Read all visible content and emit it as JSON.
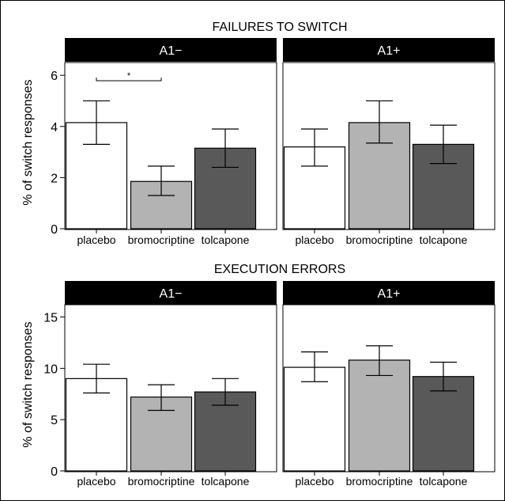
{
  "figure": {
    "ylabel": "% of switch responses",
    "significance_label": "*"
  },
  "colors": {
    "placebo": "#ffffff",
    "bromocriptine": "#b3b3b3",
    "tolcapone": "#595959",
    "strip": "#000000",
    "strip_text": "#ffffff"
  },
  "chart_data": [
    {
      "type": "bar",
      "title": "FAILURES TO SWITCH",
      "ylabel": "% of switch responses",
      "ylim": [
        0,
        6.5
      ],
      "yticks": [
        0,
        2,
        4,
        6
      ],
      "categories": [
        "placebo",
        "bromocriptine",
        "tolcapone"
      ],
      "panels": [
        {
          "label": "A1−",
          "values": [
            4.15,
            1.85,
            3.15
          ],
          "error_low": [
            3.3,
            1.3,
            2.4
          ],
          "error_high": [
            5.0,
            2.45,
            3.9
          ],
          "significance": {
            "from": "placebo",
            "to": "bromocriptine",
            "label": "*"
          }
        },
        {
          "label": "A1+",
          "values": [
            3.2,
            4.15,
            3.3
          ],
          "error_low": [
            2.45,
            3.35,
            2.55
          ],
          "error_high": [
            3.9,
            5.0,
            4.05
          ]
        }
      ]
    },
    {
      "type": "bar",
      "title": "EXECUTION ERRORS",
      "ylabel": "% of switch responses",
      "ylim": [
        0,
        16.2
      ],
      "yticks": [
        0,
        5,
        10,
        15
      ],
      "categories": [
        "placebo",
        "bromocriptine",
        "tolcapone"
      ],
      "panels": [
        {
          "label": "A1−",
          "values": [
            9.0,
            7.2,
            7.7
          ],
          "error_low": [
            7.6,
            5.9,
            6.4
          ],
          "error_high": [
            10.4,
            8.4,
            9.0
          ]
        },
        {
          "label": "A1+",
          "values": [
            10.1,
            10.8,
            9.2
          ],
          "error_low": [
            8.7,
            9.3,
            7.8
          ],
          "error_high": [
            11.6,
            12.2,
            10.6
          ]
        }
      ]
    }
  ]
}
